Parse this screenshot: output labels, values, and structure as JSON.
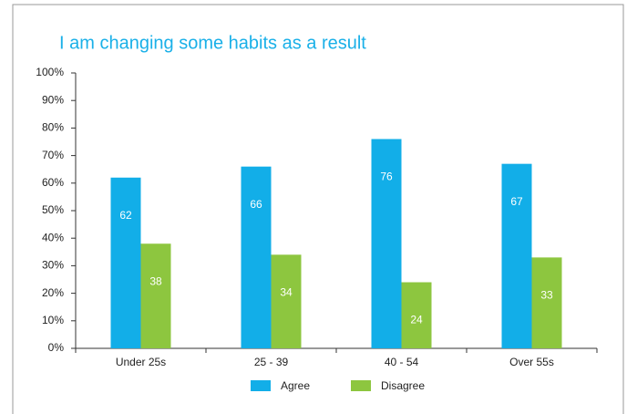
{
  "chart_data": {
    "type": "bar",
    "title": "I am changing some habits as a result",
    "categories": [
      "Under 25s",
      "25 - 39",
      "40 - 54",
      "Over 55s"
    ],
    "series": [
      {
        "name": "Agree",
        "color": "#12aee8",
        "values": [
          62,
          66,
          76,
          67
        ]
      },
      {
        "name": "Disagree",
        "color": "#8dc63f",
        "values": [
          38,
          34,
          24,
          33
        ]
      }
    ],
    "ylim": [
      0,
      100
    ],
    "yticks": [
      {
        "value": 0,
        "label": "0%"
      },
      {
        "value": 10,
        "label": "10%"
      },
      {
        "value": 20,
        "label": "20%"
      },
      {
        "value": 30,
        "label": "30%"
      },
      {
        "value": 40,
        "label": "40%"
      },
      {
        "value": 50,
        "label": "50%"
      },
      {
        "value": 60,
        "label": "60%"
      },
      {
        "value": 70,
        "label": "70%"
      },
      {
        "value": 80,
        "label": "80%"
      },
      {
        "value": 90,
        "label": "90%"
      },
      {
        "value": 100,
        "label": "100%"
      }
    ],
    "legend": "bottom"
  }
}
